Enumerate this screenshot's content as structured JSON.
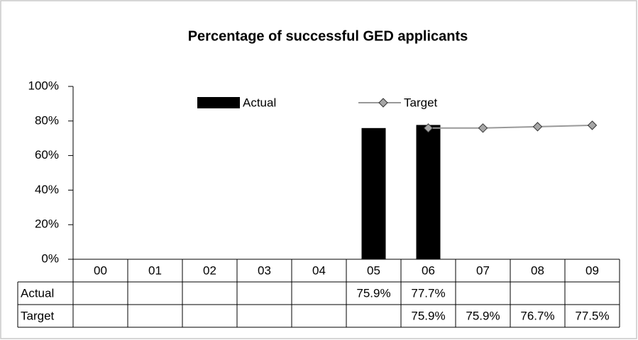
{
  "chart_data": {
    "type": "bar",
    "title": "Percentage of successful GED applicants",
    "categories": [
      "00",
      "01",
      "02",
      "03",
      "04",
      "05",
      "06",
      "07",
      "08",
      "09"
    ],
    "series": [
      {
        "name": "Actual",
        "type": "bar",
        "color": "#000000",
        "values": [
          null,
          null,
          null,
          null,
          null,
          75.9,
          77.7,
          null,
          null,
          null
        ],
        "value_labels": [
          null,
          null,
          null,
          null,
          null,
          "75.9%",
          "77.7%",
          null,
          null,
          null
        ]
      },
      {
        "name": "Target",
        "type": "line",
        "color": "#999999",
        "marker_color": "#a6a6a6",
        "values": [
          null,
          null,
          null,
          null,
          null,
          null,
          75.9,
          75.9,
          76.7,
          77.5
        ],
        "value_labels": [
          null,
          null,
          null,
          null,
          null,
          null,
          "75.9%",
          "75.9%",
          "76.7%",
          "77.5%"
        ]
      }
    ],
    "ylim": [
      0,
      100
    ],
    "yticks": [
      {
        "value": 0,
        "label": "0%"
      },
      {
        "value": 20,
        "label": "20%"
      },
      {
        "value": 40,
        "label": "40%"
      },
      {
        "value": 60,
        "label": "60%"
      },
      {
        "value": 80,
        "label": "80%"
      },
      {
        "value": 100,
        "label": "100%"
      }
    ],
    "grid": false,
    "legend": "top",
    "data_table": true
  }
}
